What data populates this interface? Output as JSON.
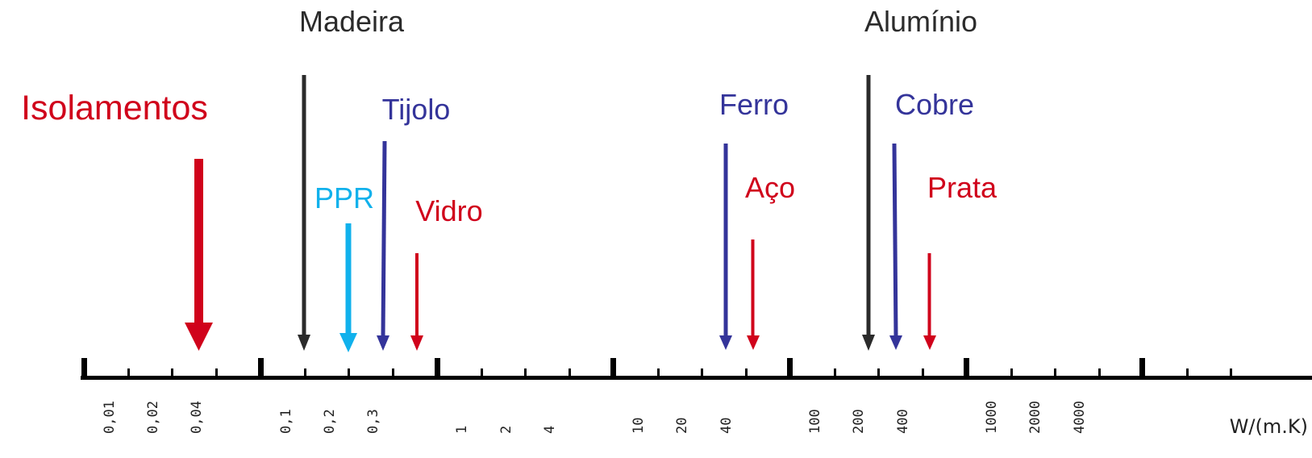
{
  "unit_label": "W/(m.K)",
  "colors": {
    "axis": "#000000",
    "black": "#2b2b2b",
    "blue": "#34349a",
    "red": "#d0021b",
    "cyan": "#11b1ec"
  },
  "tick_labels": [
    "0,01",
    "0,02",
    "0,04",
    "0,1",
    "0,2",
    "0,3",
    "1",
    "2",
    "4",
    "10",
    "20",
    "40",
    "100",
    "200",
    "400",
    "1000",
    "2000",
    "4000"
  ],
  "materials": [
    {
      "name": "Isolamentos",
      "color": "red",
      "value": "0,04"
    },
    {
      "name": "Madeira",
      "color": "black",
      "value": "0,1"
    },
    {
      "name": "PPR",
      "color": "cyan",
      "value": "0,2"
    },
    {
      "name": "Tijolo",
      "color": "blue",
      "value": "0,3"
    },
    {
      "name": "Vidro",
      "color": "red",
      "value": "1"
    },
    {
      "name": "Ferro",
      "color": "blue",
      "value": "40"
    },
    {
      "name": "Aço",
      "color": "red",
      "value": "50"
    },
    {
      "name": "Alumínio",
      "color": "black",
      "value": "200"
    },
    {
      "name": "Cobre",
      "color": "blue",
      "value": "400"
    },
    {
      "name": "Prata",
      "color": "red",
      "value": "430"
    }
  ]
}
